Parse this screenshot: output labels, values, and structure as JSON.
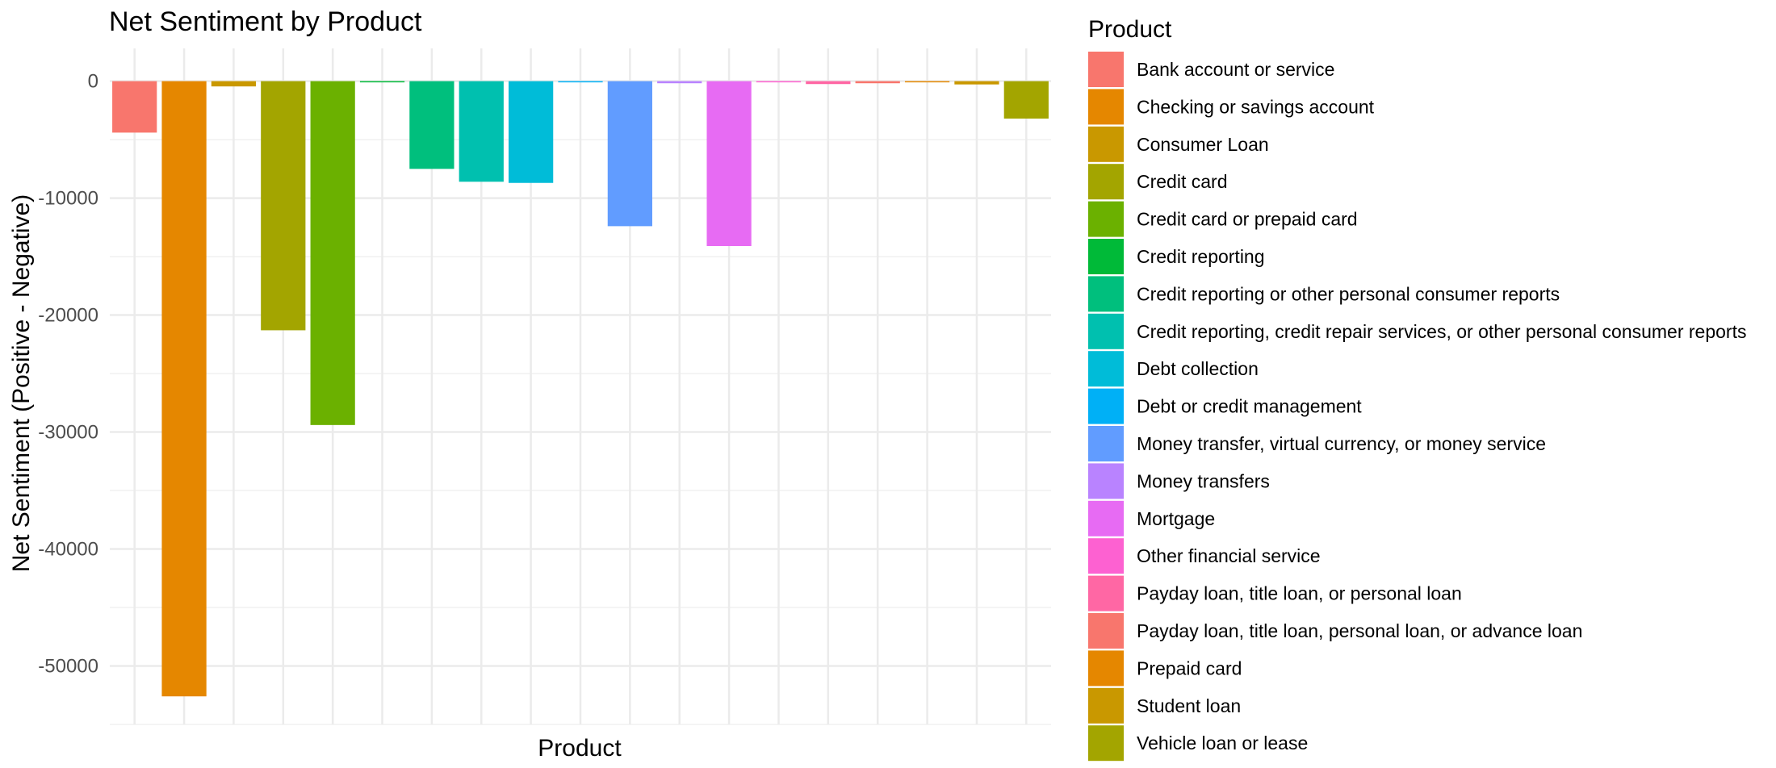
{
  "chart_data": {
    "type": "bar",
    "title": "Net Sentiment by Product",
    "xlabel": "Product",
    "ylabel": "Net Sentiment (Positive - Negative)",
    "ylim": [
      -55000,
      2800
    ],
    "yticks": [
      0,
      -10000,
      -20000,
      -30000,
      -40000,
      -50000
    ],
    "ytick_labels": [
      "0",
      "-10000",
      "-20000",
      "-30000",
      "-40000",
      "-50000"
    ],
    "grid": true,
    "legend": {
      "title": "Product",
      "placement": "right"
    },
    "categories": [
      "Bank account or service",
      "Checking or savings account",
      "Consumer Loan",
      "Credit card",
      "Credit card or prepaid card",
      "Credit reporting",
      "Credit reporting or other personal consumer reports",
      "Credit reporting, credit repair services, or other personal consumer reports",
      "Debt collection",
      "Debt or credit management",
      "Money transfer, virtual currency, or money service",
      "Money transfers",
      "Mortgage",
      "Other financial service",
      "Payday loan, title loan, or personal loan",
      "Payday loan, title loan, personal loan, or advance loan",
      "Prepaid card",
      "Student loan",
      "Vehicle loan or lease"
    ],
    "values": [
      -4400,
      -52600,
      -450,
      -21300,
      -29400,
      -80,
      -7500,
      -8600,
      -8700,
      -50,
      -12400,
      -180,
      -14100,
      -30,
      -250,
      -180,
      -60,
      -280,
      -3200
    ],
    "colors": [
      "#F8766D",
      "#E58700",
      "#C99800",
      "#A3A500",
      "#6BB100",
      "#00BA38",
      "#00BF7D",
      "#00C0AF",
      "#00BCD8",
      "#00B0F6",
      "#619CFF",
      "#B983FF",
      "#E76BF3",
      "#FD61D1",
      "#FF67A4",
      "#F8766D",
      "#E58700",
      "#C99800",
      "#A3A500"
    ]
  }
}
